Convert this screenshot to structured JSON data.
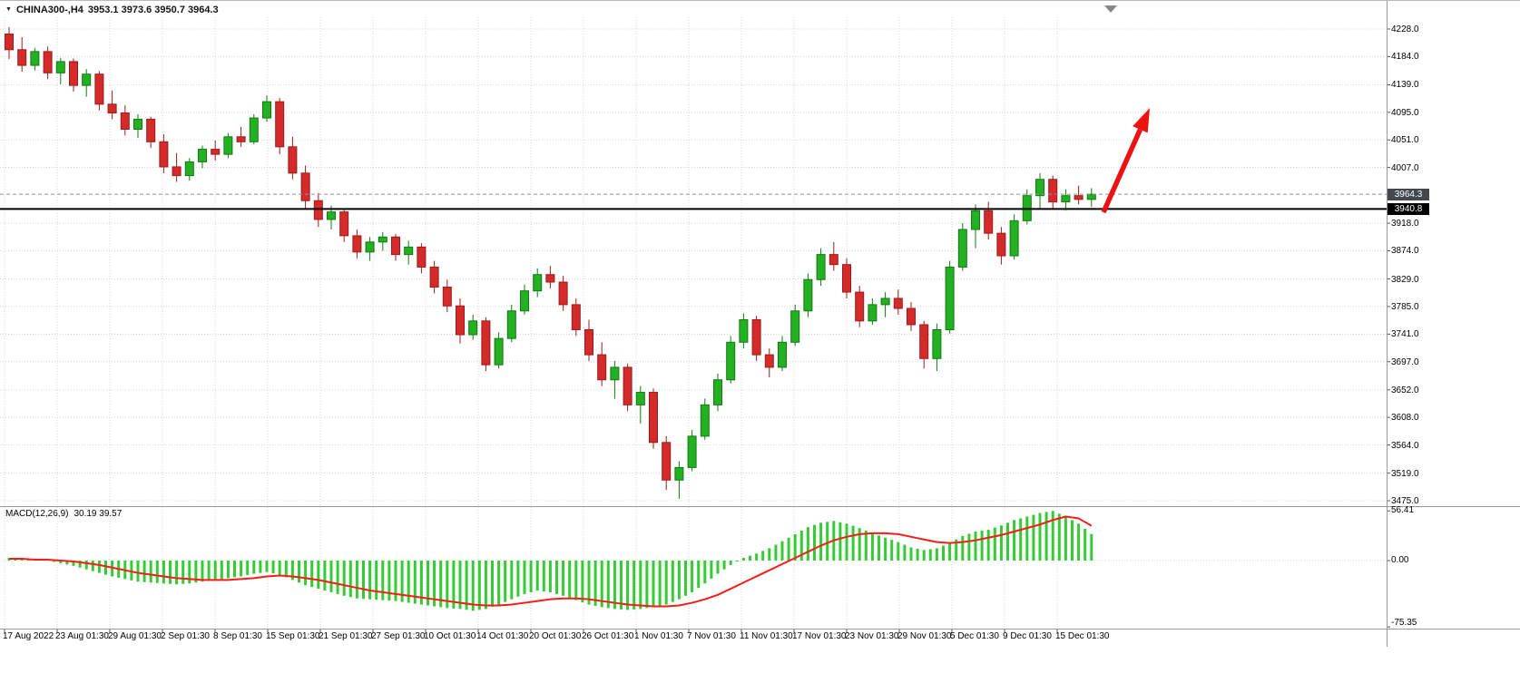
{
  "window": {
    "title_symbol": "CHINA300-,H4",
    "title_ohlc": "3953.1 3973.6 3950.7 3964.3"
  },
  "icons": {
    "title_arrow": "▼",
    "shift_marker": "shift-marker-triangle"
  },
  "price_axis": {
    "current_price": "3964.3",
    "line_price": "3940.8"
  },
  "macd_panel": {
    "label": "MACD(12,26,9)",
    "values": "30.19 39.57",
    "axis": [
      "56.41",
      "0.00",
      "-75.35"
    ]
  },
  "chart_data": {
    "type": "candlestick+macd",
    "symbol": "CHINA300-",
    "timeframe": "H4",
    "ohlc_display": {
      "open": 3953.1,
      "high": 3973.6,
      "low": 3950.7,
      "close": 3964.3
    },
    "price_ticks": [
      4228.0,
      4184.0,
      4139.0,
      4095.0,
      4051.0,
      4007.0,
      3918.0,
      3874.0,
      3829.0,
      3785.0,
      3741.0,
      3697.0,
      3652.0,
      3608.0,
      3564.0,
      3519.0,
      3475.0
    ],
    "price_range": [
      3475.0,
      4228.0
    ],
    "grid": true,
    "annotations": {
      "horizontal_line_price": 3940.8,
      "current_price_line": 3964.3,
      "arrow": {
        "type": "trend-arrow-up",
        "color": "#ee1111",
        "tail": [
          1216,
          233
        ],
        "head": [
          1267,
          118
        ]
      }
    },
    "candles": [
      [
        4220,
        4231,
        4180,
        4195
      ],
      [
        4195,
        4215,
        4160,
        4170
      ],
      [
        4170,
        4198,
        4162,
        4192
      ],
      [
        4192,
        4200,
        4148,
        4158
      ],
      [
        4158,
        4182,
        4140,
        4176
      ],
      [
        4176,
        4181,
        4128,
        4138
      ],
      [
        4138,
        4164,
        4120,
        4156
      ],
      [
        4156,
        4161,
        4098,
        4108
      ],
      [
        4108,
        4130,
        4084,
        4094
      ],
      [
        4094,
        4106,
        4058,
        4068
      ],
      [
        4068,
        4092,
        4054,
        4084
      ],
      [
        4084,
        4088,
        4038,
        4048
      ],
      [
        4048,
        4060,
        3998,
        4008
      ],
      [
        4008,
        4030,
        3984,
        3994
      ],
      [
        3994,
        4022,
        3986,
        4016
      ],
      [
        4016,
        4042,
        4006,
        4036
      ],
      [
        4036,
        4050,
        4018,
        4028
      ],
      [
        4028,
        4062,
        4022,
        4056
      ],
      [
        4056,
        4072,
        4040,
        4048
      ],
      [
        4048,
        4092,
        4044,
        4086
      ],
      [
        4086,
        4122,
        4080,
        4112
      ],
      [
        4112,
        4118,
        4028,
        4040
      ],
      [
        4040,
        4056,
        3988,
        3998
      ],
      [
        3998,
        4010,
        3942,
        3954
      ],
      [
        3954,
        3966,
        3912,
        3924
      ],
      [
        3924,
        3946,
        3908,
        3936
      ],
      [
        3936,
        3941,
        3888,
        3898
      ],
      [
        3898,
        3908,
        3862,
        3872
      ],
      [
        3872,
        3896,
        3858,
        3888
      ],
      [
        3888,
        3904,
        3874,
        3896
      ],
      [
        3896,
        3901,
        3858,
        3868
      ],
      [
        3868,
        3890,
        3852,
        3880
      ],
      [
        3880,
        3886,
        3838,
        3848
      ],
      [
        3848,
        3858,
        3806,
        3816
      ],
      [
        3816,
        3828,
        3776,
        3786
      ],
      [
        3786,
        3798,
        3726,
        3740
      ],
      [
        3740,
        3772,
        3732,
        3762
      ],
      [
        3762,
        3768,
        3682,
        3692
      ],
      [
        3692,
        3744,
        3686,
        3734
      ],
      [
        3734,
        3788,
        3728,
        3778
      ],
      [
        3778,
        3820,
        3772,
        3810
      ],
      [
        3810,
        3846,
        3800,
        3836
      ],
      [
        3836,
        3850,
        3814,
        3824
      ],
      [
        3824,
        3834,
        3778,
        3788
      ],
      [
        3788,
        3798,
        3738,
        3748
      ],
      [
        3748,
        3764,
        3698,
        3708
      ],
      [
        3708,
        3728,
        3658,
        3668
      ],
      [
        3668,
        3698,
        3638,
        3688
      ],
      [
        3688,
        3694,
        3618,
        3628
      ],
      [
        3628,
        3658,
        3598,
        3648
      ],
      [
        3648,
        3654,
        3558,
        3568
      ],
      [
        3568,
        3578,
        3492,
        3508
      ],
      [
        3508,
        3538,
        3478,
        3528
      ],
      [
        3528,
        3588,
        3522,
        3578
      ],
      [
        3578,
        3638,
        3572,
        3628
      ],
      [
        3628,
        3678,
        3618,
        3668
      ],
      [
        3668,
        3738,
        3662,
        3728
      ],
      [
        3728,
        3774,
        3718,
        3764
      ],
      [
        3764,
        3770,
        3698,
        3708
      ],
      [
        3708,
        3718,
        3672,
        3688
      ],
      [
        3688,
        3738,
        3682,
        3728
      ],
      [
        3728,
        3788,
        3722,
        3778
      ],
      [
        3778,
        3838,
        3768,
        3828
      ],
      [
        3828,
        3878,
        3818,
        3868
      ],
      [
        3868,
        3888,
        3842,
        3852
      ],
      [
        3852,
        3862,
        3798,
        3808
      ],
      [
        3808,
        3818,
        3752,
        3762
      ],
      [
        3762,
        3798,
        3756,
        3788
      ],
      [
        3788,
        3808,
        3768,
        3798
      ],
      [
        3798,
        3812,
        3772,
        3782
      ],
      [
        3782,
        3792,
        3746,
        3756
      ],
      [
        3756,
        3762,
        3686,
        3702
      ],
      [
        3702,
        3758,
        3682,
        3748
      ],
      [
        3748,
        3858,
        3742,
        3848
      ],
      [
        3848,
        3918,
        3842,
        3908
      ],
      [
        3908,
        3948,
        3878,
        3938
      ],
      [
        3938,
        3952,
        3892,
        3902
      ],
      [
        3902,
        3912,
        3852,
        3866
      ],
      [
        3866,
        3932,
        3860,
        3922
      ],
      [
        3922,
        3972,
        3916,
        3962
      ],
      [
        3962,
        3998,
        3942,
        3988
      ],
      [
        3988,
        3994,
        3942,
        3952
      ],
      [
        3952,
        3972,
        3938,
        3962
      ],
      [
        3962,
        3978,
        3948,
        3956
      ],
      [
        3956,
        3974,
        3944,
        3964.3
      ]
    ],
    "macd": {
      "params": "12,26,9",
      "current_macd": 30.19,
      "current_signal": 39.57,
      "axis_range": [
        -75.35,
        56.41
      ],
      "histogram": [
        3,
        2,
        1,
        0,
        -3,
        -6,
        -10,
        -14,
        -18,
        -21,
        -24,
        -25,
        -26,
        -27,
        -26,
        -24,
        -22,
        -20,
        -18,
        -15,
        -13,
        -16,
        -22,
        -28,
        -32,
        -36,
        -40,
        -43,
        -44,
        -45,
        -46,
        -48,
        -50,
        -52,
        -54,
        -55,
        -57,
        -55,
        -50,
        -44,
        -38,
        -34,
        -36,
        -40,
        -45,
        -50,
        -53,
        -55,
        -56,
        -55,
        -53,
        -50,
        -44,
        -36,
        -26,
        -15,
        -5,
        3,
        8,
        14,
        22,
        30,
        38,
        43,
        45,
        42,
        37,
        31,
        26,
        21,
        15,
        12,
        14,
        20,
        28,
        33,
        35,
        40,
        46,
        50,
        54,
        56.41,
        50,
        42,
        30.19
      ],
      "signal": [
        2,
        2,
        1,
        1,
        0,
        -1,
        -3,
        -5,
        -8,
        -11,
        -14,
        -16,
        -18,
        -20,
        -21,
        -22,
        -22,
        -22,
        -21,
        -20,
        -18,
        -17,
        -18,
        -20,
        -22,
        -25,
        -28,
        -31,
        -34,
        -36,
        -38,
        -40,
        -42,
        -44,
        -46,
        -48,
        -50,
        -51,
        -51,
        -50,
        -48,
        -46,
        -44,
        -43,
        -43,
        -44,
        -46,
        -48,
        -50,
        -51,
        -52,
        -52,
        -51,
        -48,
        -44,
        -39,
        -32,
        -25,
        -18,
        -11,
        -4,
        3,
        10,
        17,
        23,
        27,
        30,
        31,
        31,
        30,
        27,
        24,
        21,
        20,
        21,
        23,
        26,
        29,
        33,
        37,
        41,
        46,
        50,
        48,
        39.57
      ]
    },
    "time_labels": [
      "17 Aug 2022",
      "23 Aug 01:30",
      "29 Aug 01:30",
      "2 Sep 01:30",
      "8 Sep 01:30",
      "15 Sep 01:30",
      "21 Sep 01:30",
      "27 Sep 01:30",
      "10 Oct 01:30",
      "14 Oct 01:30",
      "20 Oct 01:30",
      "26 Oct 01:30",
      "1 Nov 01:30",
      "7 Nov 01:30",
      "11 Nov 01:30",
      "17 Nov 01:30",
      "23 Nov 01:30",
      "29 Nov 01:30",
      "5 Dec 01:30",
      "9 Dec 01:30",
      "15 Dec 01:30"
    ],
    "time_tick_x": [
      3,
      61,
      119,
      177,
      235,
      293,
      351,
      409,
      467,
      525,
      583,
      641,
      699,
      757,
      815,
      873,
      931,
      989,
      1047,
      1105,
      1163
    ],
    "style": {
      "up": "#23b123",
      "up_border": "#117a11",
      "down": "#d42a2a",
      "down_border": "#9c1c1c",
      "macd_hist": "#33cc33",
      "signal_line": "#ff1a1a",
      "grid": "#d4d4d4",
      "black_line": "#000000",
      "current_line": "#8f969c",
      "arrow": "#ee1111",
      "shift_marker": "#888888"
    }
  }
}
